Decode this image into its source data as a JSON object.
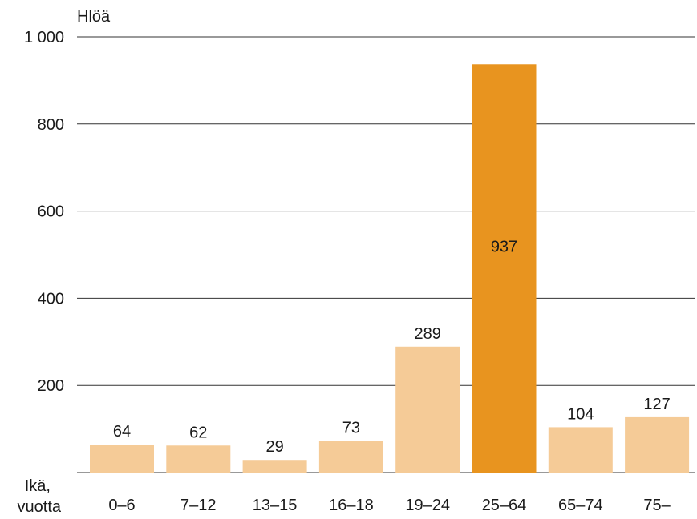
{
  "chart_data": {
    "type": "bar",
    "ylabel": "Hlöä",
    "xlabel": [
      "Ikä,",
      "vuotta"
    ],
    "categories": [
      "0–6",
      "7–12",
      "13–15",
      "16–18",
      "19–24",
      "25–64",
      "65–74",
      "75–"
    ],
    "values": [
      64,
      62,
      29,
      73,
      289,
      937,
      104,
      127
    ],
    "ylim": [
      0,
      1000
    ],
    "yticks": [
      200,
      400,
      600,
      800,
      1000
    ],
    "ytick_labels": [
      "200",
      "400",
      "600",
      "800",
      "1 000"
    ],
    "grid": true,
    "highlight_index": 5,
    "colors": {
      "bar": "#f5cb97",
      "highlight": "#e8941f",
      "grid": "#333333",
      "text": "#1a1a1a"
    }
  }
}
